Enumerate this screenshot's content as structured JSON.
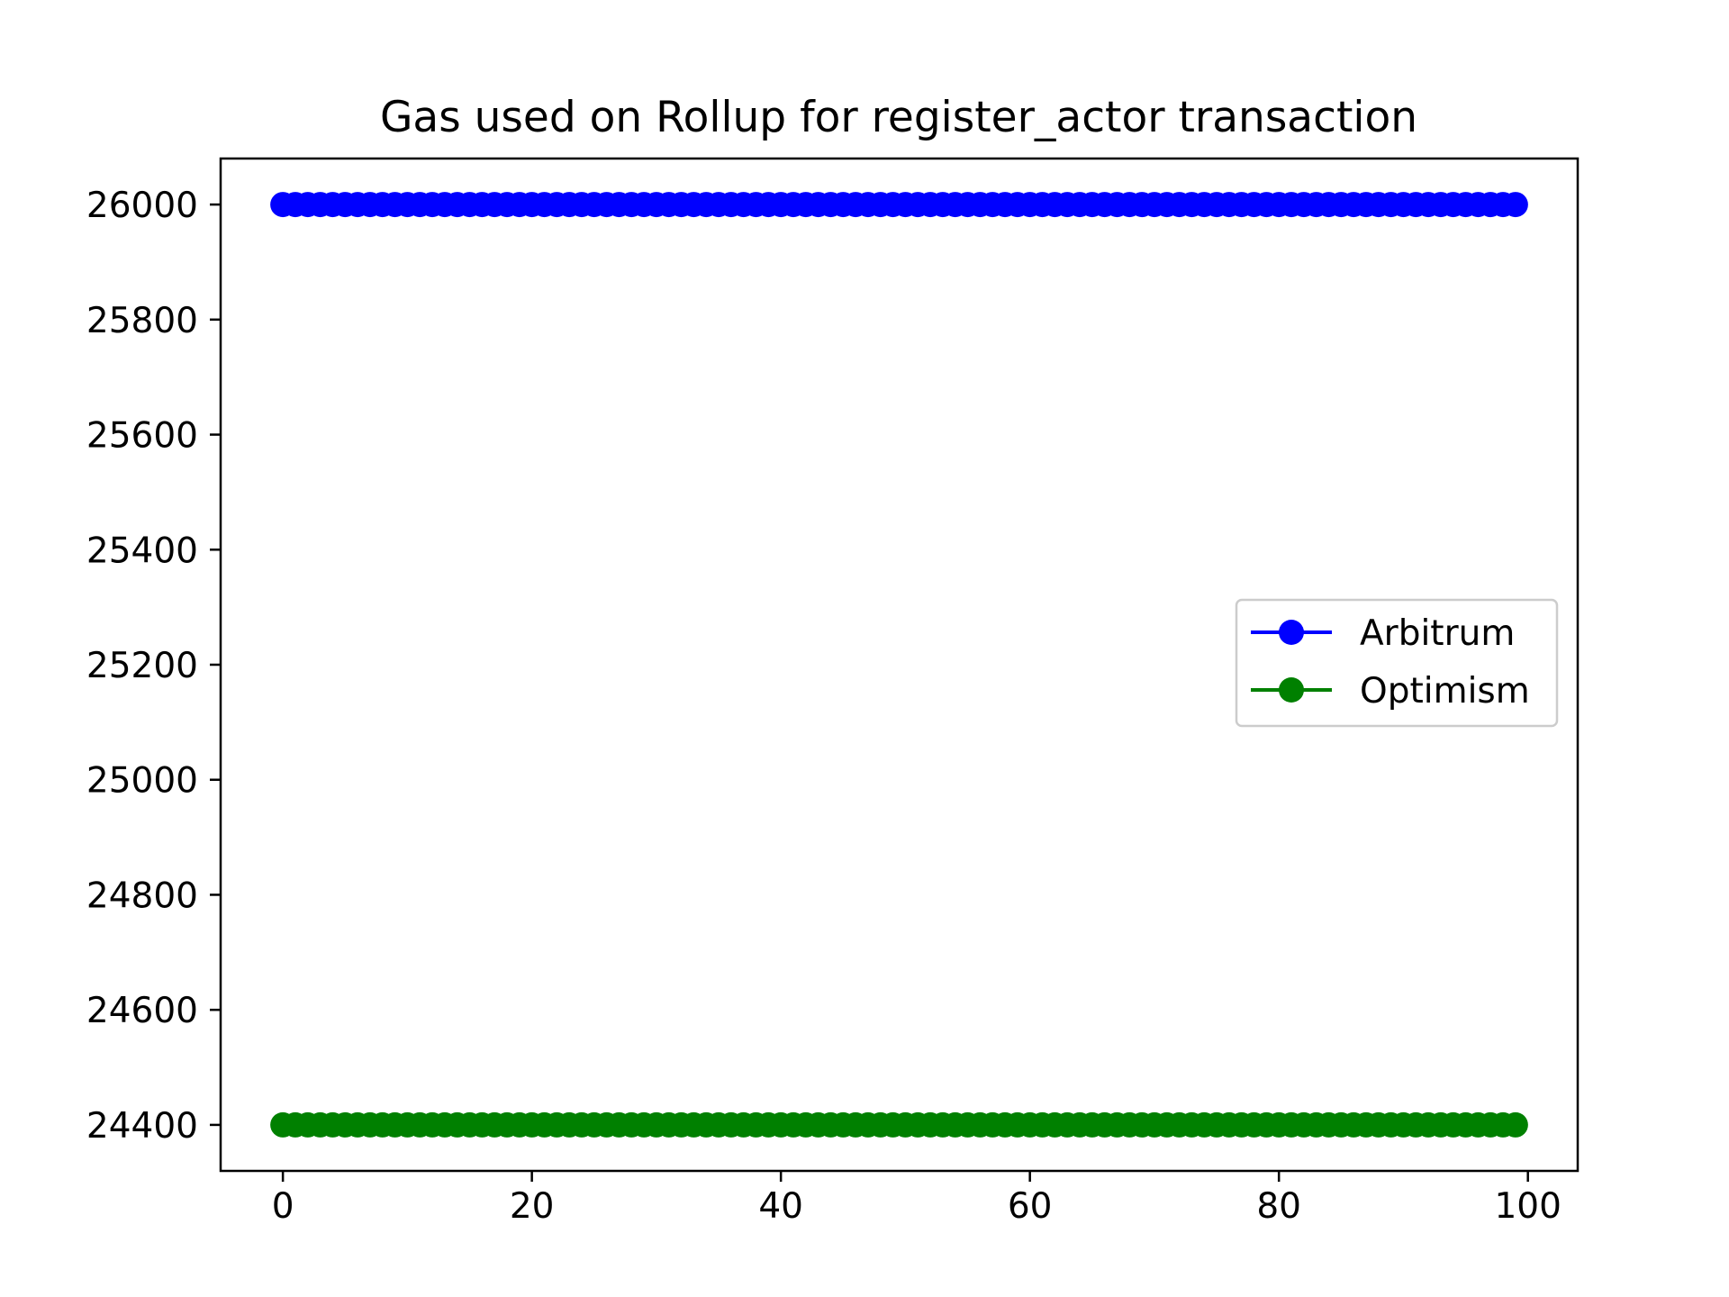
{
  "chart_data": {
    "type": "line",
    "title": "Gas used on Rollup for register_actor transaction",
    "xlabel": "",
    "ylabel": "",
    "x_range": [
      0,
      99
    ],
    "xlim": [
      -5,
      104
    ],
    "ylim": [
      24320,
      26080
    ],
    "x_ticks": [
      0,
      20,
      40,
      60,
      80,
      100
    ],
    "y_ticks": [
      24400,
      24600,
      24800,
      25000,
      25200,
      25400,
      25600,
      25800,
      26000
    ],
    "grid": false,
    "legend_position": "center-right",
    "series": [
      {
        "name": "Arbitrum",
        "constant_value": 26000,
        "color": "#0000ff",
        "marker": "circle"
      },
      {
        "name": "Optimism",
        "constant_value": 24400,
        "color": "#008000",
        "marker": "circle"
      }
    ]
  }
}
